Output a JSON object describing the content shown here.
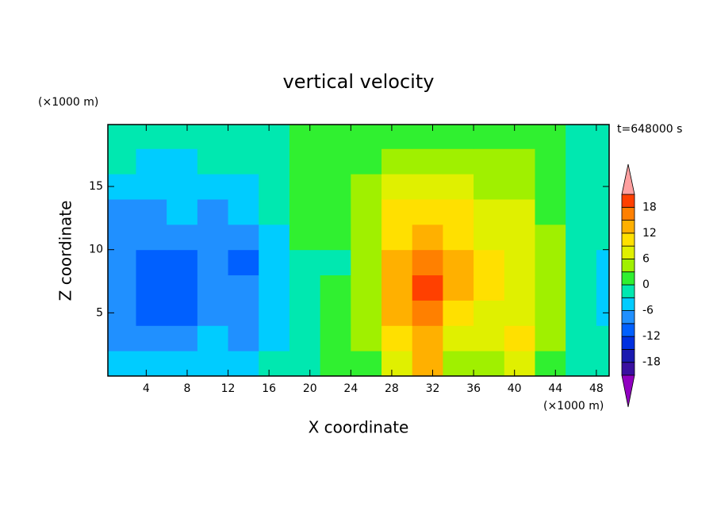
{
  "chart_data": {
    "type": "contour",
    "title": "vertical velocity",
    "x_label": "X coordinate",
    "y_label": "Z coordinate",
    "x_units": "(×1000 m)",
    "y_units": "(×1000 m)",
    "time_label": "t=648000 s",
    "x": [
      1.5,
      4.5,
      7.5,
      10.5,
      13.5,
      16.5,
      19.5,
      22.5,
      25.5,
      28.5,
      31.5,
      34.5,
      37.5,
      40.5,
      43.5,
      46.5,
      49.5
    ],
    "y": [
      1,
      3,
      5,
      7,
      9,
      11,
      13,
      15,
      17,
      19
    ],
    "z": [
      [
        -4,
        -5,
        -4,
        -4,
        -4,
        -3,
        -1,
        1,
        2,
        6,
        12,
        4,
        3,
        6,
        2,
        -2,
        -3
      ],
      [
        -7,
        -7,
        -9,
        -6,
        -7,
        -5,
        -1,
        1,
        3,
        9,
        14,
        8,
        7,
        9,
        3,
        -2,
        -3
      ],
      [
        -8,
        -10,
        -11,
        -7,
        -8,
        -6,
        -2,
        1,
        4,
        12,
        17,
        11,
        8,
        8,
        3,
        -2,
        -5
      ],
      [
        -9,
        -12,
        -12,
        -8,
        -9,
        -6,
        -2,
        1,
        5,
        14,
        19,
        12,
        9,
        7,
        3,
        -2,
        -6
      ],
      [
        -8,
        -12,
        -10,
        -9,
        -10,
        -5,
        -1,
        -3,
        5,
        12,
        16,
        12,
        10,
        7,
        3,
        -2,
        -4
      ],
      [
        -8,
        -9,
        -8,
        -9,
        -9,
        -4,
        1,
        2,
        5,
        11,
        14,
        10,
        8,
        7,
        3,
        -2,
        -3
      ],
      [
        -7,
        -7,
        -6,
        -7,
        -6,
        -3,
        1,
        2,
        4,
        9,
        11,
        9,
        7,
        6,
        2,
        -2,
        -3
      ],
      [
        -4,
        -5,
        -4,
        -4,
        -4,
        -2,
        1,
        2,
        3,
        6,
        7,
        6,
        5,
        4,
        2,
        -2,
        -2
      ],
      [
        -3,
        -4,
        -4,
        -3,
        -3,
        -2,
        0,
        1,
        2,
        3,
        4,
        4,
        3,
        3,
        1,
        -1,
        -2
      ],
      [
        -1,
        -1,
        -2,
        -1,
        -1,
        -1,
        0,
        1,
        1,
        1,
        1,
        1,
        1,
        1,
        0,
        -1,
        -1
      ]
    ],
    "xlim": [
      0.25,
      49.25
    ],
    "ylim": [
      0,
      19.9
    ],
    "xticks": [
      4,
      8,
      12,
      16,
      20,
      24,
      28,
      32,
      36,
      40,
      44,
      48
    ],
    "yticks": [
      5,
      10,
      15
    ],
    "levels": [
      -21,
      -18,
      -15,
      -12,
      -9,
      -6,
      -3,
      0,
      3,
      6,
      9,
      12,
      15,
      18,
      21
    ],
    "colors": [
      "#3a10a0",
      "#1a1ab0",
      "#0030e0",
      "#0060ff",
      "#2090ff",
      "#00ccff",
      "#00e8b0",
      "#30f030",
      "#a0f000",
      "#e0f000",
      "#ffe000",
      "#ffb000",
      "#ff8000",
      "#ff4000"
    ],
    "over_color": "#ffa0a0",
    "under_color": "#9000c0",
    "colorbar_ticks": [
      18,
      12,
      6,
      0,
      -6,
      -12,
      -18
    ]
  }
}
